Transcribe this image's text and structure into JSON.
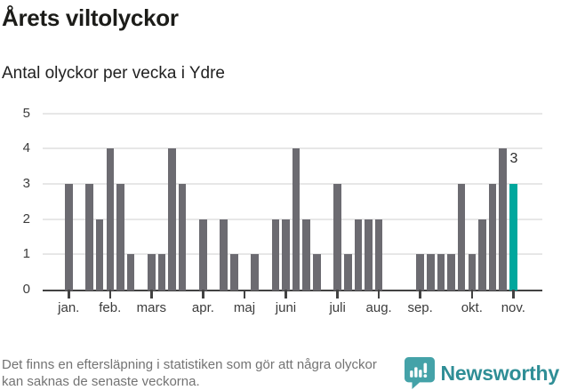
{
  "header": {
    "title": "Årets viltolyckor",
    "subtitle": "Antal olyckor per vecka i Ydre"
  },
  "chart_data": {
    "type": "bar",
    "title": "Årets viltolyckor",
    "subtitle": "Antal olyckor per vecka i Ydre",
    "xlabel": "",
    "ylabel": "",
    "ylim": [
      0,
      5
    ],
    "yticks": [
      0,
      1,
      2,
      3,
      4,
      5
    ],
    "grid": true,
    "n_weeks": 44,
    "values": [
      3,
      0,
      3,
      2,
      4,
      3,
      1,
      0,
      1,
      1,
      4,
      3,
      0,
      2,
      0,
      2,
      1,
      0,
      1,
      0,
      2,
      2,
      4,
      2,
      1,
      0,
      3,
      1,
      2,
      2,
      2,
      0,
      0,
      0,
      1,
      1,
      1,
      1,
      3,
      1,
      2,
      3,
      4,
      3
    ],
    "highlight_index": 43,
    "highlight_label": "3",
    "month_ticks": [
      {
        "label": "jan.",
        "slot": 0
      },
      {
        "label": "feb.",
        "slot": 4
      },
      {
        "label": "mars",
        "slot": 8
      },
      {
        "label": "apr.",
        "slot": 13
      },
      {
        "label": "maj",
        "slot": 17
      },
      {
        "label": "juni",
        "slot": 21
      },
      {
        "label": "juli",
        "slot": 26
      },
      {
        "label": "aug.",
        "slot": 30
      },
      {
        "label": "sep.",
        "slot": 34
      },
      {
        "label": "okt.",
        "slot": 39
      },
      {
        "label": "nov.",
        "slot": 43
      }
    ],
    "legend_position": "none"
  },
  "footer": {
    "note": "Det finns en eftersläpning i statistiken som gör att några olyckor kan saknas de senaste veckorna.",
    "brand": "Newsworthy",
    "brand_icon": "speech-bubble-bar-chart-icon"
  },
  "colors": {
    "background": "#ffffff",
    "bar": "#6c6b71",
    "highlight": "#00a79d",
    "grid": "#e7e7e7",
    "axis": "#424242",
    "title_text": "#1c1c19",
    "label_text": "#3c3c3c",
    "footer_text": "#737373",
    "brand_teal": "#44a2a8"
  }
}
